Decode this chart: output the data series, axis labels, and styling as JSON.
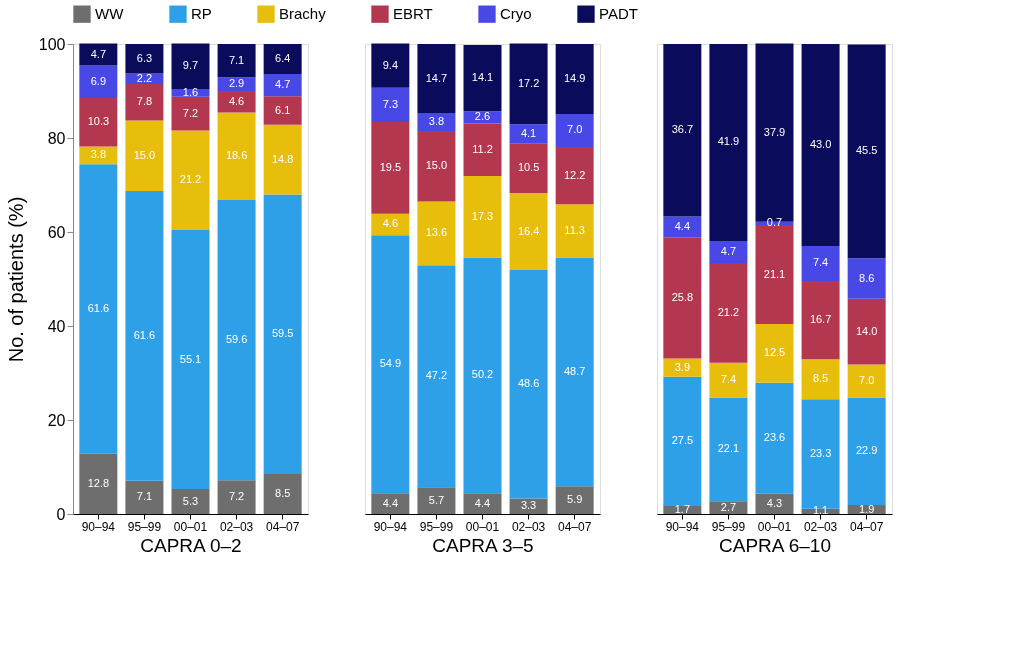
{
  "chart_data": [
    {
      "type": "bar",
      "stacked": true,
      "xlabel": "CAPRA 0–2",
      "ylabel": "No. of patients (%)",
      "categories": [
        "90–94",
        "95–99",
        "00–01",
        "02–03",
        "04–07"
      ],
      "ylim": [
        0,
        100
      ],
      "yticks": [
        0,
        20,
        40,
        60,
        80,
        100
      ],
      "grid": false,
      "legend": "top",
      "value_labels": [
        [
          "12.8",
          "7.1",
          "5.3",
          "7.2",
          "8.5"
        ],
        [
          "61.6",
          "61.6",
          "55.1",
          "59.6",
          "59.5"
        ],
        [
          "3.8",
          "15.0",
          "21.2",
          "18.6",
          "14.8"
        ],
        [
          "10.3",
          "7.8",
          "7.2",
          "4.6",
          "6.1"
        ],
        [
          "6.9",
          "2.2",
          "1.6",
          "2.9",
          "4.7"
        ],
        [
          "4.7",
          "6.3",
          "9.7",
          "7.1",
          "6.4"
        ]
      ],
      "series": [
        {
          "name": "WW",
          "color": "#6e6e6e",
          "values": [
            12.8,
            7.1,
            5.3,
            7.2,
            8.5
          ]
        },
        {
          "name": "RP",
          "color": "#2da0e8",
          "values": [
            61.6,
            61.6,
            55.1,
            59.6,
            59.5
          ]
        },
        {
          "name": "Brachy",
          "color": "#e8be0c",
          "values": [
            3.8,
            15.0,
            21.2,
            18.6,
            14.8
          ]
        },
        {
          "name": "EBRT",
          "color": "#b3374f",
          "values": [
            10.3,
            7.8,
            7.2,
            4.6,
            6.1
          ]
        },
        {
          "name": "Cryo",
          "color": "#4848e6",
          "values": [
            6.9,
            2.2,
            1.6,
            2.9,
            4.7
          ]
        },
        {
          "name": "PADT",
          "color": "#0b0b5c",
          "values": [
            4.7,
            6.3,
            9.7,
            7.1,
            6.4
          ]
        }
      ]
    },
    {
      "type": "bar",
      "stacked": true,
      "xlabel": "CAPRA 3–5",
      "categories": [
        "90–94",
        "95–99",
        "00–01",
        "02–03",
        "04–07"
      ],
      "ylim": [
        0,
        100
      ],
      "yticks": [
        0,
        20,
        40,
        60,
        80,
        100
      ],
      "grid": false,
      "tick_labels": "x",
      "value_labels": [
        [
          "4.4",
          "5.7",
          "4.4",
          "3.3",
          "5.9"
        ],
        [
          "54.9",
          "47.2",
          "50.2",
          "48.6",
          "48.7"
        ],
        [
          "4.6",
          "13.6",
          "17.3",
          "16.4",
          "11.3"
        ],
        [
          "19.5",
          "15.0",
          "11.2",
          "10.5",
          "12.2"
        ],
        [
          "7.3",
          "3.8",
          "2.6",
          "4.1",
          "7.0"
        ],
        [
          "9.4",
          "14.7",
          "14.1",
          "17.2",
          "14.9"
        ]
      ],
      "series": [
        {
          "name": "WW",
          "color": "#6e6e6e",
          "values": [
            4.4,
            5.7,
            4.4,
            3.3,
            5.9
          ]
        },
        {
          "name": "RP",
          "color": "#2da0e8",
          "values": [
            54.9,
            47.2,
            50.2,
            48.6,
            48.7
          ]
        },
        {
          "name": "Brachy",
          "color": "#e8be0c",
          "values": [
            4.6,
            13.6,
            17.3,
            16.4,
            11.3
          ]
        },
        {
          "name": "EBRT",
          "color": "#b3374f",
          "values": [
            19.5,
            15.0,
            11.2,
            10.5,
            12.2
          ]
        },
        {
          "name": "Cryo",
          "color": "#4848e6",
          "values": [
            7.3,
            3.8,
            2.6,
            4.1,
            7.0
          ]
        },
        {
          "name": "PADT",
          "color": "#0b0b5c",
          "values": [
            9.4,
            14.7,
            14.1,
            17.2,
            14.9
          ]
        }
      ]
    },
    {
      "type": "bar",
      "stacked": true,
      "xlabel": "CAPRA 6–10",
      "categories": [
        "90–94",
        "95–99",
        "00–01",
        "02–03",
        "04–07"
      ],
      "ylim": [
        0,
        100
      ],
      "yticks": [
        0,
        20,
        40,
        60,
        80,
        100
      ],
      "grid": false,
      "tick_labels": "x",
      "value_labels": [
        [
          "1.7",
          "2.7",
          "4.3",
          "1.1",
          "1.9"
        ],
        [
          "27.5",
          "22.1",
          "23.6",
          "23.3",
          "22.9"
        ],
        [
          "3.9",
          "7.4",
          "12.5",
          "8.5",
          "7.0"
        ],
        [
          "25.8",
          "21.2",
          "21.1",
          "16.7",
          "14.0"
        ],
        [
          "4.4",
          "4.7",
          "0.7",
          "7.4",
          "8.6"
        ],
        [
          "36.7",
          "41.9",
          "37.9",
          "43.0",
          "45.5"
        ]
      ],
      "series": [
        {
          "name": "WW",
          "color": "#6e6e6e",
          "values": [
            1.7,
            2.7,
            4.3,
            1.1,
            1.9
          ]
        },
        {
          "name": "RP",
          "color": "#2da0e8",
          "values": [
            27.5,
            22.1,
            23.6,
            23.3,
            22.9
          ]
        },
        {
          "name": "Brachy",
          "color": "#e8be0c",
          "values": [
            3.9,
            7.4,
            12.5,
            8.5,
            7.0
          ]
        },
        {
          "name": "EBRT",
          "color": "#b3374f",
          "values": [
            25.8,
            21.2,
            21.1,
            16.7,
            14.0
          ]
        },
        {
          "name": "Cryo",
          "color": "#4848e6",
          "values": [
            4.4,
            4.7,
            0.7,
            7.4,
            8.6
          ]
        },
        {
          "name": "PADT",
          "color": "#0b0b5c",
          "values": [
            36.7,
            41.9,
            37.9,
            43.0,
            45.5
          ]
        }
      ]
    }
  ]
}
